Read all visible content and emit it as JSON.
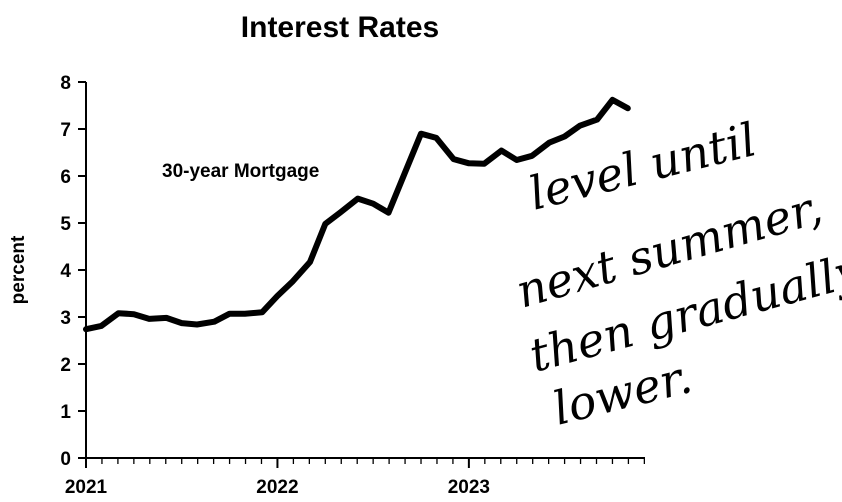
{
  "chart_data": {
    "type": "line",
    "title": "Interest Rates",
    "ylabel": "percent",
    "ylim": [
      0,
      8
    ],
    "y_ticks": [
      "0",
      "1",
      "2",
      "3",
      "4",
      "5",
      "6",
      "7",
      "8"
    ],
    "x_ticks": [
      "2021",
      "2022",
      "2023"
    ],
    "xlim": [
      2021.0,
      2023.92
    ],
    "grid": false,
    "series": [
      {
        "name": "30-year Mortgage",
        "color": "#000000",
        "x": [
          2021.0,
          2021.08,
          2021.17,
          2021.25,
          2021.33,
          2021.42,
          2021.5,
          2021.58,
          2021.67,
          2021.75,
          2021.83,
          2021.92,
          2022.0,
          2022.08,
          2022.17,
          2022.25,
          2022.33,
          2022.42,
          2022.5,
          2022.58,
          2022.67,
          2022.75,
          2022.83,
          2022.92,
          2023.0,
          2023.08,
          2023.17,
          2023.25,
          2023.33,
          2023.42,
          2023.5,
          2023.58,
          2023.67,
          2023.75,
          2023.83
        ],
        "values": [
          2.74,
          2.81,
          3.08,
          3.06,
          2.96,
          2.98,
          2.87,
          2.84,
          2.9,
          3.07,
          3.07,
          3.1,
          3.45,
          3.76,
          4.17,
          4.98,
          5.23,
          5.52,
          5.41,
          5.22,
          6.11,
          6.9,
          6.81,
          6.36,
          6.27,
          6.26,
          6.54,
          6.34,
          6.43,
          6.71,
          6.84,
          7.07,
          7.2,
          7.62,
          7.44
        ]
      }
    ],
    "annotation": "level until next summer, then gradually lower."
  }
}
